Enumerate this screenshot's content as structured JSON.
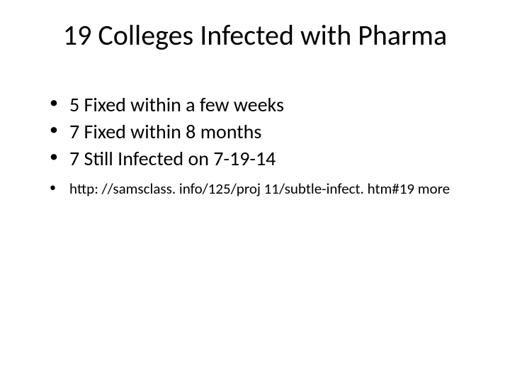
{
  "slide": {
    "title": "19 Colleges Infected with Pharma",
    "title_fontsize": 40,
    "background_color": "#ffffff",
    "text_color": "#000000",
    "main_bullets": [
      "5 Fixed within a few weeks",
      "7 Fixed within 8 months",
      "7 Still Infected on 7-19-14"
    ],
    "main_bullet_fontsize": 28,
    "sub_bullets": [
      "http: //samsclass. info/125/proj 11/subtle-infect. htm#19 more"
    ],
    "sub_bullet_fontsize": 21
  }
}
